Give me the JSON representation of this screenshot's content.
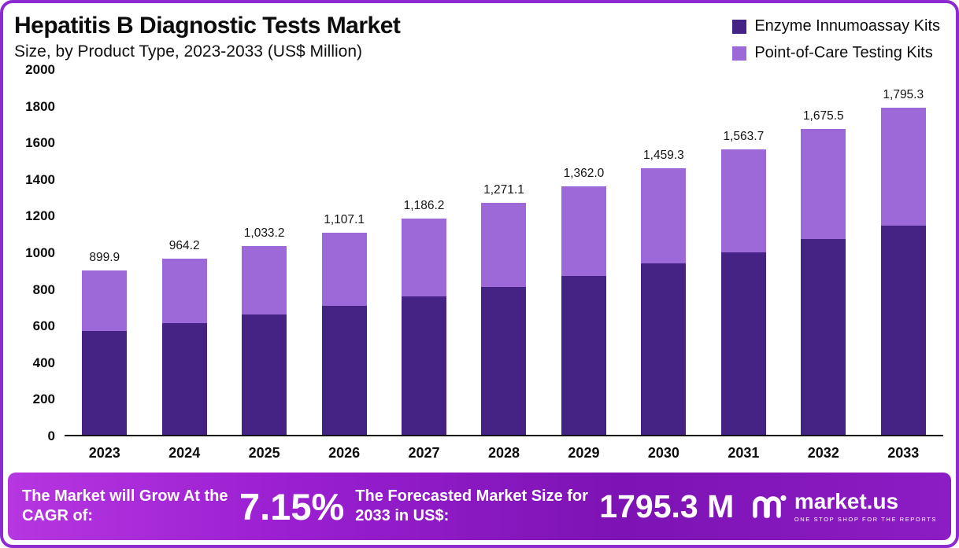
{
  "header": {
    "title": "Hepatitis B Diagnostic Tests Market",
    "subtitle": "Size, by Product Type, 2023-2033 (US$ Million)"
  },
  "legend": [
    {
      "label": "Enzyme Innumoassay Kits",
      "color": "#452384"
    },
    {
      "label": "Point-of-Care Testing Kits",
      "color": "#9d69d8"
    }
  ],
  "colors": {
    "frame_border": "#8b2bd1",
    "enzyme_series": "#452384",
    "poc_series": "#9d69d8",
    "banner_gradient": [
      "#b636e0",
      "#9a1fd1",
      "#7d13b4",
      "#8c1cc4"
    ]
  },
  "chart_data": {
    "type": "bar",
    "stacked": true,
    "title": "Hepatitis B Diagnostic Tests Market Size, by Product Type, 2023-2033 (US$ Million)",
    "categories": [
      "2023",
      "2024",
      "2025",
      "2026",
      "2027",
      "2028",
      "2029",
      "2030",
      "2031",
      "2032",
      "2033"
    ],
    "series": [
      {
        "name": "Enzyme Innumoassay Kits",
        "color": "#452384",
        "values": [
          570,
          612,
          658,
          705,
          758,
          812,
          872,
          938,
          1002,
          1072,
          1148
        ]
      },
      {
        "name": "Point-of-Care Testing Kits",
        "color": "#9d69d8",
        "values": [
          329.9,
          352.2,
          375.2,
          402.1,
          428.2,
          459.1,
          490.0,
          521.3,
          561.7,
          603.5,
          647.3
        ]
      }
    ],
    "totals": [
      899.9,
      964.2,
      1033.2,
      1107.1,
      1186.2,
      1271.1,
      1362.0,
      1459.3,
      1563.7,
      1675.5,
      1795.3
    ],
    "total_labels": [
      "899.9",
      "964.2",
      "1,033.2",
      "1,107.1",
      "1,186.2",
      "1,271.1",
      "1,362.0",
      "1,459.3",
      "1,563.7",
      "1,675.5",
      "1,795.3"
    ],
    "xlabel": "",
    "ylabel": "",
    "ylim": [
      0,
      2000
    ],
    "yticks": [
      2000,
      1800,
      1600,
      1400,
      1200,
      1000,
      800,
      600,
      400,
      200,
      0
    ],
    "grid": false,
    "legend_position": "top-right"
  },
  "footer": {
    "cagr_label": "The Market will Grow At the CAGR of:",
    "cagr_value": "7.15%",
    "forecast_label": "The Forecasted Market Size for 2033 in US$:",
    "forecast_value": "1795.3 M",
    "brand": "market.us",
    "brand_tagline": "ONE STOP SHOP FOR THE REPORTS"
  }
}
